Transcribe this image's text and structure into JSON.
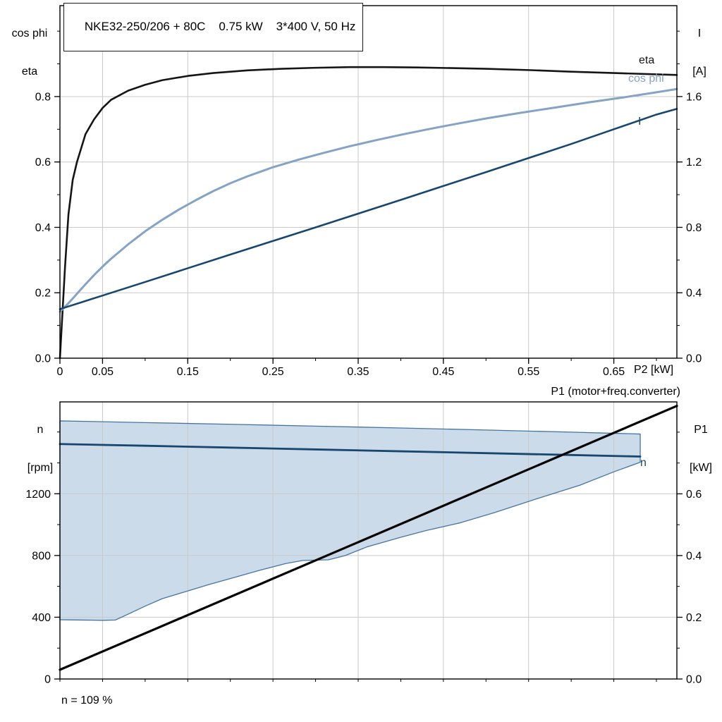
{
  "chart_data": {
    "top": {
      "type": "line",
      "title": "NKE32-250/206 + 80C    0.75 kW    3*400 V, 50 Hz",
      "x_axis": {
        "label": "P2 [kW]",
        "range": [
          0,
          0.724
        ],
        "minor_step": 0.05,
        "grid": [
          0.05,
          0.15,
          0.25,
          0.35,
          0.45,
          0.55,
          0.65
        ],
        "ticks": [
          {
            "v": 0,
            "t": "0"
          },
          {
            "v": 0.05,
            "t": "0.05"
          },
          {
            "v": 0.15,
            "t": "0.15"
          },
          {
            "v": 0.25,
            "t": "0.25"
          },
          {
            "v": 0.35,
            "t": "0.35"
          },
          {
            "v": 0.45,
            "t": "0.45"
          },
          {
            "v": 0.55,
            "t": "0.55"
          },
          {
            "v": 0.65,
            "t": "0.65"
          }
        ]
      },
      "left_axis": {
        "label_lines": [
          "cos phi",
          "eta"
        ],
        "range": [
          0,
          1.078
        ],
        "minor_step": 0.1,
        "grid": [
          0.2,
          0.4,
          0.6,
          0.8
        ],
        "ticks": [
          {
            "v": 0,
            "t": "0.0"
          },
          {
            "v": 0.2,
            "t": "0.2"
          },
          {
            "v": 0.4,
            "t": "0.4"
          },
          {
            "v": 0.6,
            "t": "0.6"
          },
          {
            "v": 0.8,
            "t": "0.8"
          }
        ]
      },
      "right_axis": {
        "label_lines": [
          "I",
          "[A]"
        ],
        "range": [
          0,
          2.156
        ],
        "minor_step": 0.2,
        "grid": [],
        "ticks": [
          {
            "v": 0,
            "t": "0.0"
          },
          {
            "v": 0.4,
            "t": "0.4"
          },
          {
            "v": 0.8,
            "t": "0.8"
          },
          {
            "v": 1.2,
            "t": "1.2"
          },
          {
            "v": 1.6,
            "t": "1.6"
          }
        ]
      },
      "series": [
        {
          "id": "eta",
          "name": "eta",
          "axis": "left",
          "color": "#151515",
          "width": 2.6,
          "points": [
            [
              0,
              0
            ],
            [
              0.003,
              0.14
            ],
            [
              0.006,
              0.28
            ],
            [
              0.01,
              0.44
            ],
            [
              0.015,
              0.545
            ],
            [
              0.02,
              0.6
            ],
            [
              0.03,
              0.685
            ],
            [
              0.04,
              0.73
            ],
            [
              0.05,
              0.765
            ],
            [
              0.06,
              0.79
            ],
            [
              0.08,
              0.818
            ],
            [
              0.1,
              0.836
            ],
            [
              0.12,
              0.85
            ],
            [
              0.15,
              0.863
            ],
            [
              0.18,
              0.872
            ],
            [
              0.22,
              0.88
            ],
            [
              0.26,
              0.885
            ],
            [
              0.3,
              0.888
            ],
            [
              0.34,
              0.89
            ],
            [
              0.38,
              0.89
            ],
            [
              0.42,
              0.889
            ],
            [
              0.46,
              0.887
            ],
            [
              0.5,
              0.885
            ],
            [
              0.55,
              0.881
            ],
            [
              0.6,
              0.876
            ],
            [
              0.65,
              0.872
            ],
            [
              0.7,
              0.868
            ],
            [
              0.724,
              0.866
            ]
          ]
        },
        {
          "id": "cos-phi",
          "name": "cos phi",
          "axis": "left",
          "color": "#85a3c5",
          "width": 3,
          "points": [
            [
              0,
              0.142
            ],
            [
              0.01,
              0.168
            ],
            [
              0.02,
              0.197
            ],
            [
              0.03,
              0.226
            ],
            [
              0.04,
              0.254
            ],
            [
              0.05,
              0.28
            ],
            [
              0.06,
              0.304
            ],
            [
              0.08,
              0.348
            ],
            [
              0.1,
              0.388
            ],
            [
              0.12,
              0.423
            ],
            [
              0.14,
              0.455
            ],
            [
              0.16,
              0.484
            ],
            [
              0.18,
              0.511
            ],
            [
              0.2,
              0.535
            ],
            [
              0.22,
              0.556
            ],
            [
              0.25,
              0.584
            ],
            [
              0.28,
              0.607
            ],
            [
              0.31,
              0.628
            ],
            [
              0.34,
              0.648
            ],
            [
              0.37,
              0.666
            ],
            [
              0.4,
              0.683
            ],
            [
              0.43,
              0.699
            ],
            [
              0.46,
              0.714
            ],
            [
              0.5,
              0.733
            ],
            [
              0.54,
              0.75
            ],
            [
              0.58,
              0.766
            ],
            [
              0.62,
              0.782
            ],
            [
              0.66,
              0.797
            ],
            [
              0.7,
              0.813
            ],
            [
              0.724,
              0.823
            ]
          ]
        },
        {
          "id": "current",
          "name": "I",
          "axis": "right",
          "color": "#17476e",
          "width": 2.6,
          "points": [
            [
              0,
              0.3
            ],
            [
              0.05,
              0.383
            ],
            [
              0.1,
              0.466
            ],
            [
              0.15,
              0.55
            ],
            [
              0.2,
              0.634
            ],
            [
              0.25,
              0.717
            ],
            [
              0.3,
              0.8
            ],
            [
              0.35,
              0.884
            ],
            [
              0.4,
              0.968
            ],
            [
              0.45,
              1.053
            ],
            [
              0.5,
              1.138
            ],
            [
              0.55,
              1.224
            ],
            [
              0.6,
              1.31
            ],
            [
              0.65,
              1.4
            ],
            [
              0.7,
              1.49
            ],
            [
              0.724,
              1.525
            ]
          ]
        }
      ]
    },
    "bottom": {
      "type": "line+area",
      "right_title": "P1 (motor+freq.converter)",
      "footnote": "n = 109 %",
      "x_axis": {
        "label": "",
        "range": [
          0,
          0.724
        ],
        "minor_step": 0.05,
        "grid": [
          0.05,
          0.15,
          0.25,
          0.35,
          0.45,
          0.55,
          0.65
        ],
        "ticks": []
      },
      "left_axis": {
        "label_lines": [
          "n",
          "[rpm]"
        ],
        "range": [
          0,
          1795
        ],
        "minor_step": 200,
        "grid": [
          400,
          800,
          1200
        ],
        "ticks": [
          {
            "v": 0,
            "t": "0"
          },
          {
            "v": 400,
            "t": "400"
          },
          {
            "v": 800,
            "t": "800"
          },
          {
            "v": 1200,
            "t": "1200"
          }
        ]
      },
      "right_axis": {
        "label_lines": [
          "P1",
          "[kW]"
        ],
        "range": [
          0,
          0.898
        ],
        "minor_step": 0.1,
        "grid": [],
        "ticks": [
          {
            "v": 0,
            "t": "0.0"
          },
          {
            "v": 0.2,
            "t": "0.2"
          },
          {
            "v": 0.4,
            "t": "0.4"
          },
          {
            "v": 0.6,
            "t": "0.6"
          }
        ]
      },
      "region": {
        "name": "speed-control-range",
        "fill": "#ccdbea",
        "stroke": "#45759f",
        "upper": [
          [
            0,
            1672
          ],
          [
            0.1,
            1661
          ],
          [
            0.2,
            1650
          ],
          [
            0.3,
            1638
          ],
          [
            0.4,
            1626
          ],
          [
            0.5,
            1613
          ],
          [
            0.6,
            1599
          ],
          [
            0.681,
            1587
          ]
        ],
        "lower": [
          [
            0,
            384
          ],
          [
            0.05,
            380
          ],
          [
            0.065,
            382
          ],
          [
            0.08,
            420
          ],
          [
            0.1,
            472
          ],
          [
            0.12,
            520
          ],
          [
            0.145,
            562
          ],
          [
            0.175,
            612
          ],
          [
            0.205,
            658
          ],
          [
            0.235,
            705
          ],
          [
            0.265,
            748
          ],
          [
            0.285,
            768
          ],
          [
            0.315,
            772
          ],
          [
            0.335,
            800
          ],
          [
            0.36,
            855
          ],
          [
            0.4,
            918
          ],
          [
            0.43,
            962
          ],
          [
            0.47,
            1012
          ],
          [
            0.51,
            1078
          ],
          [
            0.56,
            1168
          ],
          [
            0.61,
            1255
          ],
          [
            0.65,
            1342
          ],
          [
            0.681,
            1404
          ]
        ]
      },
      "series": [
        {
          "id": "n",
          "name": "n",
          "axis": "left",
          "color": "#17476e",
          "width": 2.8,
          "points": [
            [
              0,
              1522
            ],
            [
              0.1,
              1511
            ],
            [
              0.2,
              1499
            ],
            [
              0.3,
              1487
            ],
            [
              0.4,
              1475
            ],
            [
              0.5,
              1463
            ],
            [
              0.6,
              1451
            ],
            [
              0.681,
              1441
            ]
          ]
        },
        {
          "id": "p1",
          "name": "P1",
          "axis": "right",
          "color": "#000000",
          "width": 3.2,
          "points": [
            [
              0,
              0.03
            ],
            [
              0.724,
              0.885
            ]
          ]
        }
      ]
    }
  }
}
